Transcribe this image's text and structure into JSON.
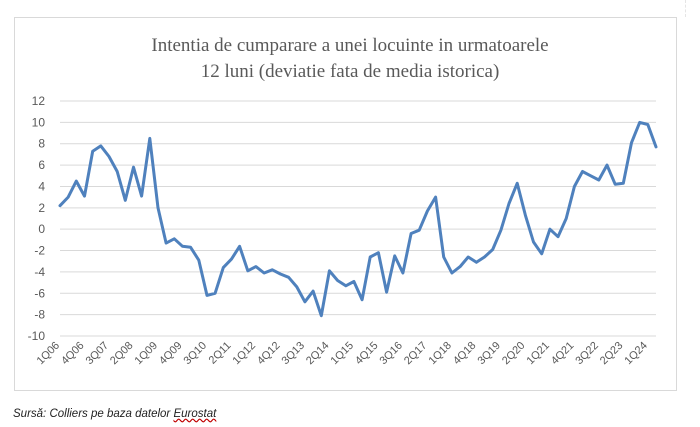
{
  "chart_data": {
    "type": "line",
    "title_line1": "Intentia de cumparare a unei locuinte in urmatoarele",
    "title_line2": "12 luni (deviatie fata de media istorica)",
    "xlabel": "",
    "ylabel": "",
    "ylim": [
      -10,
      12
    ],
    "yticks": [
      12,
      10,
      8,
      6,
      4,
      2,
      0,
      -2,
      -4,
      -6,
      -8,
      -10
    ],
    "grid": true,
    "legend": "none",
    "line_color": "#4f81bd",
    "x": [
      "1Q06",
      "2Q06",
      "3Q06",
      "4Q06",
      "1Q07",
      "2Q07",
      "3Q07",
      "4Q07",
      "1Q08",
      "2Q08",
      "3Q08",
      "4Q08",
      "1Q09",
      "2Q09",
      "3Q09",
      "4Q09",
      "1Q10",
      "2Q10",
      "3Q10",
      "4Q10",
      "1Q11",
      "2Q11",
      "3Q11",
      "4Q11",
      "1Q12",
      "2Q12",
      "3Q12",
      "4Q12",
      "1Q13",
      "2Q13",
      "3Q13",
      "4Q13",
      "1Q14",
      "2Q14",
      "3Q14",
      "4Q14",
      "1Q15",
      "2Q15",
      "3Q15",
      "4Q15",
      "1Q16",
      "2Q16",
      "3Q16",
      "4Q16",
      "1Q17",
      "2Q17",
      "3Q17",
      "4Q17",
      "1Q18",
      "2Q18",
      "3Q18",
      "4Q18",
      "1Q19",
      "2Q19",
      "3Q19",
      "4Q19",
      "1Q20",
      "2Q20",
      "3Q20",
      "4Q20",
      "1Q21",
      "2Q21",
      "3Q21",
      "4Q21",
      "1Q22",
      "2Q22",
      "3Q22",
      "4Q22",
      "1Q23",
      "2Q23",
      "3Q23",
      "4Q23",
      "1Q24",
      "2Q24"
    ],
    "y": [
      2.2,
      3.0,
      4.5,
      3.1,
      7.3,
      7.8,
      6.8,
      5.4,
      2.7,
      5.8,
      3.1,
      8.5,
      2.0,
      -1.3,
      -0.9,
      -1.6,
      -1.7,
      -2.9,
      -6.2,
      -6.0,
      -3.6,
      -2.8,
      -1.6,
      -3.9,
      -3.5,
      -4.1,
      -3.8,
      -4.2,
      -4.5,
      -5.4,
      -6.8,
      -5.8,
      -8.1,
      -3.9,
      -4.8,
      -5.3,
      -4.9,
      -6.6,
      -2.6,
      -2.2,
      -5.9,
      -2.5,
      -4.1,
      -0.4,
      -0.1,
      1.7,
      3.0,
      -2.6,
      -4.1,
      -3.5,
      -2.6,
      -3.1,
      -2.6,
      -1.9,
      -0.1,
      2.4,
      4.3,
      1.3,
      -1.2,
      -2.3,
      0.0,
      -0.7,
      1.0,
      4.0,
      5.4,
      5.0,
      4.6,
      6.0,
      4.2,
      4.3,
      8.1,
      10.0,
      9.8,
      7.7
    ],
    "xtick_labels": [
      "1Q06",
      "4Q06",
      "3Q07",
      "2Q08",
      "1Q09",
      "4Q09",
      "3Q10",
      "2Q11",
      "1Q12",
      "4Q12",
      "3Q13",
      "2Q14",
      "1Q15",
      "4Q15",
      "3Q16",
      "2Q17",
      "1Q18",
      "4Q18",
      "3Q19",
      "2Q20",
      "1Q21",
      "4Q21",
      "3Q22",
      "2Q23",
      "1Q24"
    ]
  },
  "source": {
    "prefix": "Sursă: ",
    "text": "Colliers pe baza datelor ",
    "underlined": "Eurostat"
  }
}
